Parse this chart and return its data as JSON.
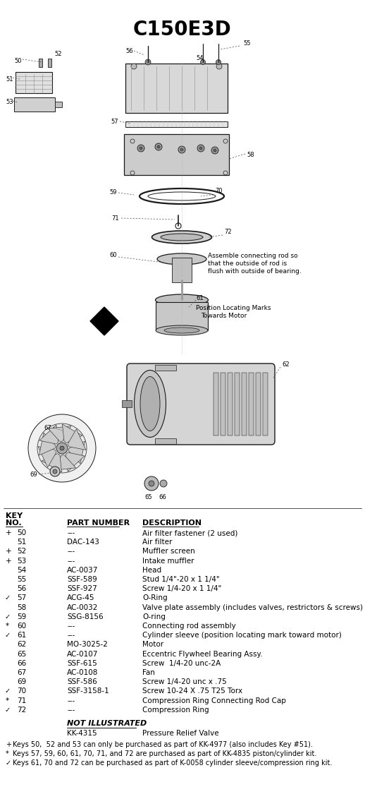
{
  "title": "C150E3D",
  "bg_color": "#ffffff",
  "parts": [
    [
      "+",
      "50",
      "---",
      "Air filter fastener (2 used)"
    ],
    [
      " ",
      "51",
      "DAC-143",
      "Air filter"
    ],
    [
      "+",
      "52",
      "---",
      "Muffler screen"
    ],
    [
      "+",
      "53",
      "---",
      "Intake muffler"
    ],
    [
      " ",
      "54",
      "AC-0037",
      "Head"
    ],
    [
      " ",
      "55",
      "SSF-589",
      "Stud 1/4\"-20 x 1 1/4\""
    ],
    [
      " ",
      "56",
      "SSF-927",
      "Screw 1/4-20 x 1 1/4\""
    ],
    [
      "ˇ",
      "57",
      "ACG-45",
      "O-Ring"
    ],
    [
      " ",
      "58",
      "AC-0032",
      "Valve plate assembly (includes valves, restrictors & screws)"
    ],
    [
      "ˇ",
      "59",
      "SSG-8156",
      "O-ring"
    ],
    [
      "*",
      "60",
      "---",
      "Connecting rod assembly"
    ],
    [
      "ˇ",
      "61",
      "---",
      "Cylinder sleeve (position locating mark toward motor)"
    ],
    [
      " ",
      "62",
      "MO-3025-2",
      "Motor"
    ],
    [
      " ",
      "65",
      "AC-0107",
      "Eccentric Flywheel Bearing Assy."
    ],
    [
      " ",
      "66",
      "SSF-615",
      "Screw  1/4-20 unc-2A"
    ],
    [
      " ",
      "67",
      "AC-0108",
      "Fan"
    ],
    [
      " ",
      "69",
      "SSF-586",
      "Screw 1/4-20 unc x .75"
    ],
    [
      "ˇ",
      "70",
      "SSF-3158-1",
      "Screw 10-24 X .75 T25 Torx"
    ],
    [
      "*",
      "71",
      "---",
      "Compression Ring Connecting Rod Cap"
    ],
    [
      "ˇ",
      "72",
      "---",
      "Compression Ring"
    ]
  ],
  "not_illustrated_label": "NOT ILLUSTRATED",
  "not_illustrated_part": "KK-4315",
  "not_illustrated_desc": "Pressure Relief Valve",
  "footnotes": [
    "+  Keys 50,  52 and 53 can only be purchased as part of KK-4977 (also includes Key #51).",
    "*  Keys 57, 59, 60, 61, 70, 71, and 72 are purchased as part of KK-4835 piston/cylinder kit.",
    "✓  Keys 61, 70 and 72 can be purchased as part of K-0058 cylinder sleeve/compression ring kit."
  ]
}
